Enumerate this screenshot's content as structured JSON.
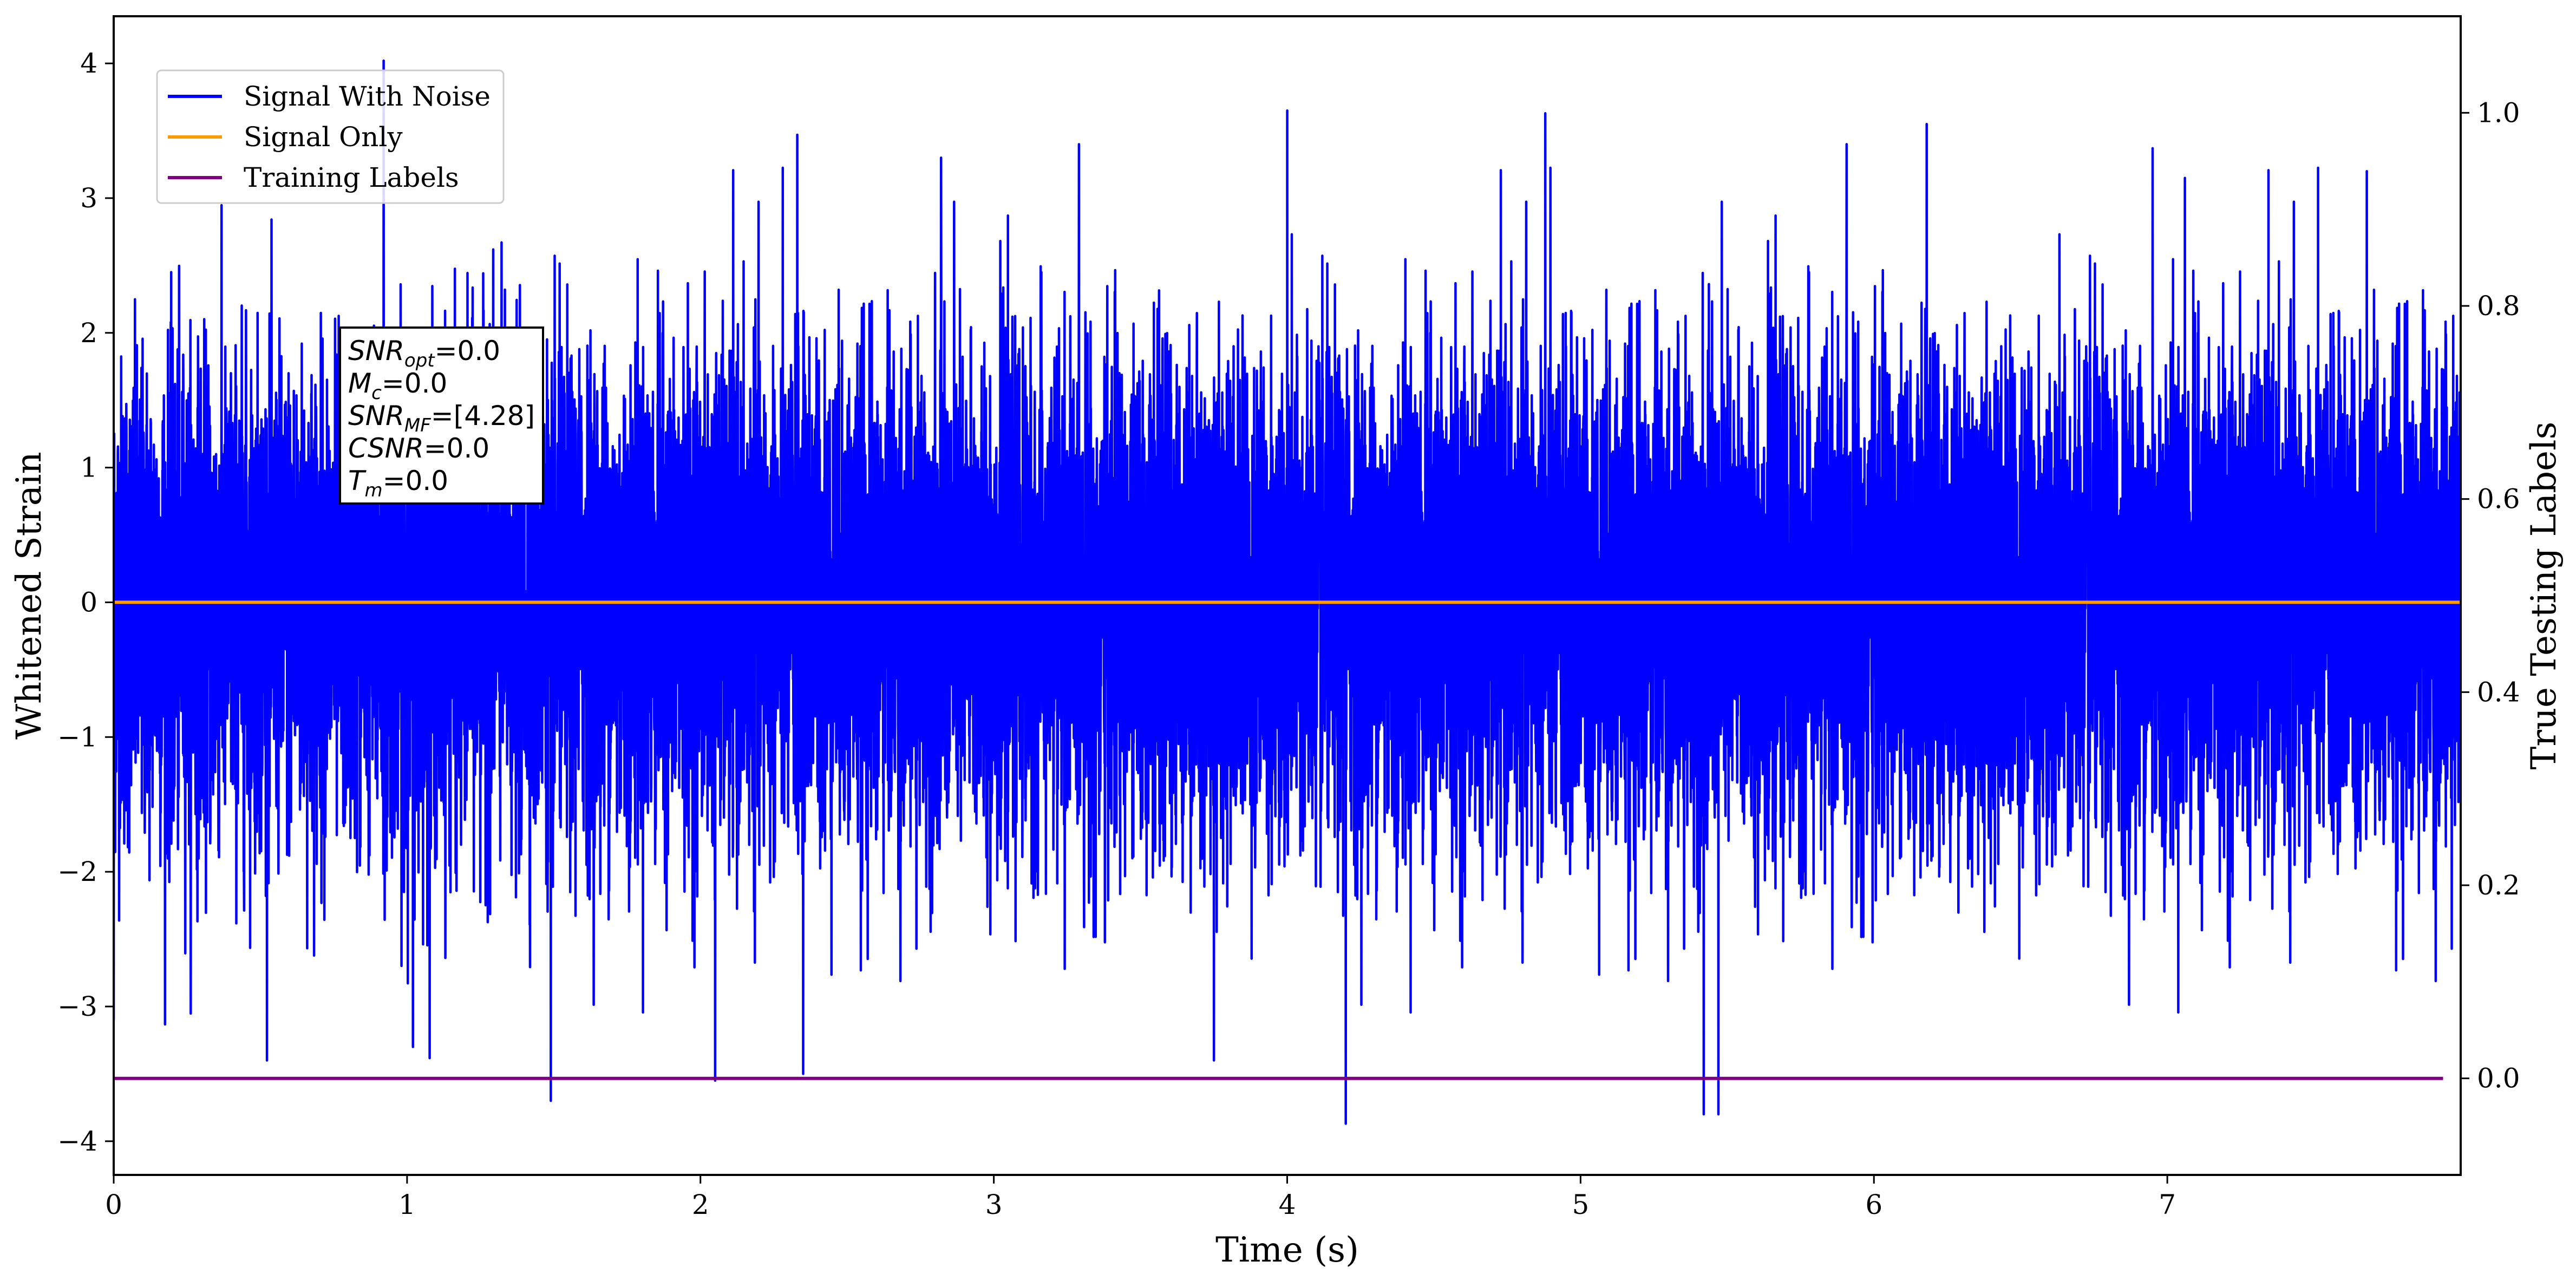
{
  "chart_data": {
    "type": "line",
    "xlabel": "Time (s)",
    "ylabel": "Whitened Strain",
    "ylabel_right": "True Testing Labels",
    "xlim": [
      0,
      8.0
    ],
    "ylim": [
      -4.25,
      4.35
    ],
    "ylim_right": [
      -0.1,
      1.1
    ],
    "x_ticks": [
      0,
      1,
      2,
      3,
      4,
      5,
      6,
      7
    ],
    "x_tick_labels": [
      "0",
      "1",
      "2",
      "3",
      "4",
      "5",
      "6",
      "7"
    ],
    "y_ticks": [
      4,
      3,
      2,
      1,
      0,
      -1,
      -2,
      -3,
      -4
    ],
    "y_tick_labels": [
      "4",
      "3",
      "2",
      "1",
      "0",
      "−1",
      "−2",
      "−3",
      "−4"
    ],
    "y_right_ticks": [
      1.0,
      0.8,
      0.6,
      0.4,
      0.2,
      0.0
    ],
    "y_right_tick_labels": [
      "1.0",
      "0.8",
      "0.6",
      "0.4",
      "0.2",
      "0.0"
    ],
    "legend_position": "top-left",
    "grid": false,
    "series": [
      {
        "name": "Signal With Noise",
        "color": "#0000ff",
        "axis": "left",
        "kind": "noise",
        "sigma": 0.9,
        "x_range": [
          0,
          8.0
        ],
        "peaks": [
          {
            "x": 0.0,
            "y": 2.4
          },
          {
            "x": 0.0,
            "y": -3.1
          },
          {
            "x": 0.92,
            "y": 4.02
          },
          {
            "x": 1.02,
            "y": -3.3
          },
          {
            "x": 1.49,
            "y": -3.7
          },
          {
            "x": 2.05,
            "y": -3.55
          },
          {
            "x": 2.33,
            "y": 3.47
          },
          {
            "x": 2.35,
            "y": -3.5
          },
          {
            "x": 2.82,
            "y": 3.3
          },
          {
            "x": 3.75,
            "y": -3.4
          },
          {
            "x": 4.0,
            "y": 3.65
          },
          {
            "x": 4.2,
            "y": 3.93
          },
          {
            "x": 4.2,
            "y": -3.87
          },
          {
            "x": 4.88,
            "y": 3.63
          },
          {
            "x": 5.42,
            "y": -3.8
          },
          {
            "x": 5.47,
            "y": -3.8
          },
          {
            "x": 6.18,
            "y": 3.55
          },
          {
            "x": 6.95,
            "y": 3.37
          },
          {
            "x": 7.06,
            "y": 3.15
          },
          {
            "x": 7.68,
            "y": 3.2
          }
        ]
      },
      {
        "name": "Signal Only",
        "color": "#ff9900",
        "axis": "left",
        "x": [
          0,
          8.0
        ],
        "y": [
          0,
          0
        ]
      },
      {
        "name": "Training Labels",
        "color": "#800080",
        "axis": "right",
        "x": [
          0,
          7.94
        ],
        "y": [
          0.0,
          0.0
        ]
      }
    ],
    "annotation": {
      "lines": [
        {
          "main": "SNR",
          "sub": "opt",
          "rest": "=0.0"
        },
        {
          "main": "M",
          "sub": "c",
          "rest": "=0.0"
        },
        {
          "main": "SNR",
          "sub": "MF",
          "rest": "=[4.28]"
        },
        {
          "main": "CSNR",
          "sub": "",
          "rest": "=0.0"
        },
        {
          "main": "T",
          "sub": "m",
          "rest": "=0.0"
        }
      ]
    }
  }
}
